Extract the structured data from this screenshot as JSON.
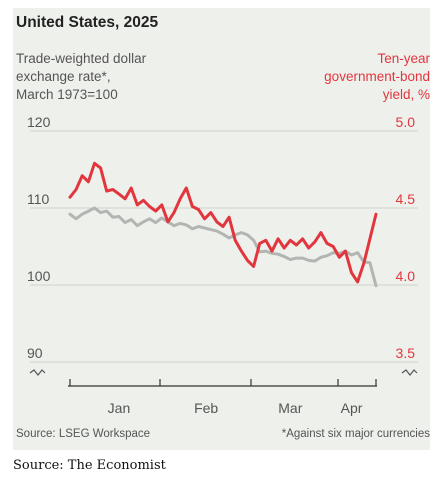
{
  "title": "United States, 2025",
  "left_axis_label": "Trade-weighted dollar\nexchange rate*,\nMarch 1973=100",
  "right_axis_label": "Ten-year\ngovernment-bond\nyield, %",
  "source": "Source: LSEG Workspace",
  "footnote": "*Against six major currencies",
  "credit": "Source: The Economist",
  "colors": {
    "dollar": "#b3b5b2",
    "yield": "#e2363e",
    "text": "#555555",
    "background": "#eef0ec"
  },
  "chart_data": {
    "type": "line",
    "title": "United States, 2025",
    "x_tick_labels": [
      "Jan",
      "Feb",
      "Mar",
      "Apr"
    ],
    "x_tick_positions": [
      0.16,
      0.445,
      0.72,
      0.92
    ],
    "y_left": {
      "label": "Trade-weighted dollar exchange rate*, March 1973=100",
      "ticks": [
        90,
        100,
        110,
        120
      ],
      "range": [
        90,
        120
      ]
    },
    "y_right": {
      "label": "Ten-year government-bond yield, %",
      "ticks": [
        "3.5",
        "4.0",
        "4.5",
        "5.0"
      ],
      "range": [
        3.5,
        5.0
      ]
    },
    "axis_break": true,
    "series": [
      {
        "axis": "left",
        "x": [
          0.0,
          0.02,
          0.04,
          0.06,
          0.08,
          0.1,
          0.12,
          0.14,
          0.16,
          0.18,
          0.2,
          0.22,
          0.24,
          0.26,
          0.28,
          0.3,
          0.32,
          0.34,
          0.36,
          0.38,
          0.4,
          0.42,
          0.44,
          0.46,
          0.48,
          0.5,
          0.52,
          0.54,
          0.56,
          0.58,
          0.6,
          0.62,
          0.64,
          0.66,
          0.68,
          0.7,
          0.72,
          0.74,
          0.76,
          0.78,
          0.8,
          0.82,
          0.84,
          0.86,
          0.88,
          0.9,
          0.92,
          0.94,
          0.96,
          0.98,
          1.0
        ],
        "values": [
          109.2,
          108.6,
          109.2,
          109.6,
          110.0,
          109.4,
          109.6,
          108.8,
          108.9,
          108.1,
          108.5,
          107.7,
          108.2,
          108.6,
          108.1,
          108.7,
          108.2,
          107.7,
          108.0,
          107.8,
          107.3,
          107.6,
          107.4,
          107.2,
          107.0,
          106.6,
          106.1,
          106.5,
          106.8,
          106.5,
          105.8,
          104.3,
          104.4,
          104.1,
          104.0,
          103.7,
          103.3,
          103.5,
          103.5,
          103.2,
          103.1,
          103.6,
          103.8,
          104.2,
          104.1,
          104.4,
          103.9,
          104.2,
          103.0,
          102.9,
          99.9
        ]
      },
      {
        "axis": "right",
        "x": [
          0.0,
          0.02,
          0.04,
          0.06,
          0.08,
          0.1,
          0.12,
          0.14,
          0.16,
          0.18,
          0.2,
          0.22,
          0.24,
          0.26,
          0.28,
          0.3,
          0.32,
          0.34,
          0.36,
          0.38,
          0.4,
          0.42,
          0.44,
          0.46,
          0.48,
          0.5,
          0.52,
          0.54,
          0.56,
          0.58,
          0.6,
          0.62,
          0.64,
          0.66,
          0.68,
          0.7,
          0.72,
          0.74,
          0.76,
          0.78,
          0.8,
          0.82,
          0.84,
          0.86,
          0.88,
          0.9,
          0.92,
          0.94,
          0.96,
          0.98,
          1.0
        ],
        "values": [
          4.57,
          4.62,
          4.71,
          4.67,
          4.79,
          4.76,
          4.61,
          4.62,
          4.59,
          4.56,
          4.63,
          4.52,
          4.55,
          4.51,
          4.48,
          4.52,
          4.41,
          4.47,
          4.56,
          4.63,
          4.51,
          4.49,
          4.43,
          4.47,
          4.41,
          4.38,
          4.44,
          4.29,
          4.22,
          4.16,
          4.12,
          4.27,
          4.29,
          4.22,
          4.3,
          4.24,
          4.29,
          4.26,
          4.3,
          4.24,
          4.28,
          4.34,
          4.27,
          4.25,
          4.18,
          4.22,
          4.08,
          4.02,
          4.14,
          4.3,
          4.46
        ]
      }
    ]
  }
}
